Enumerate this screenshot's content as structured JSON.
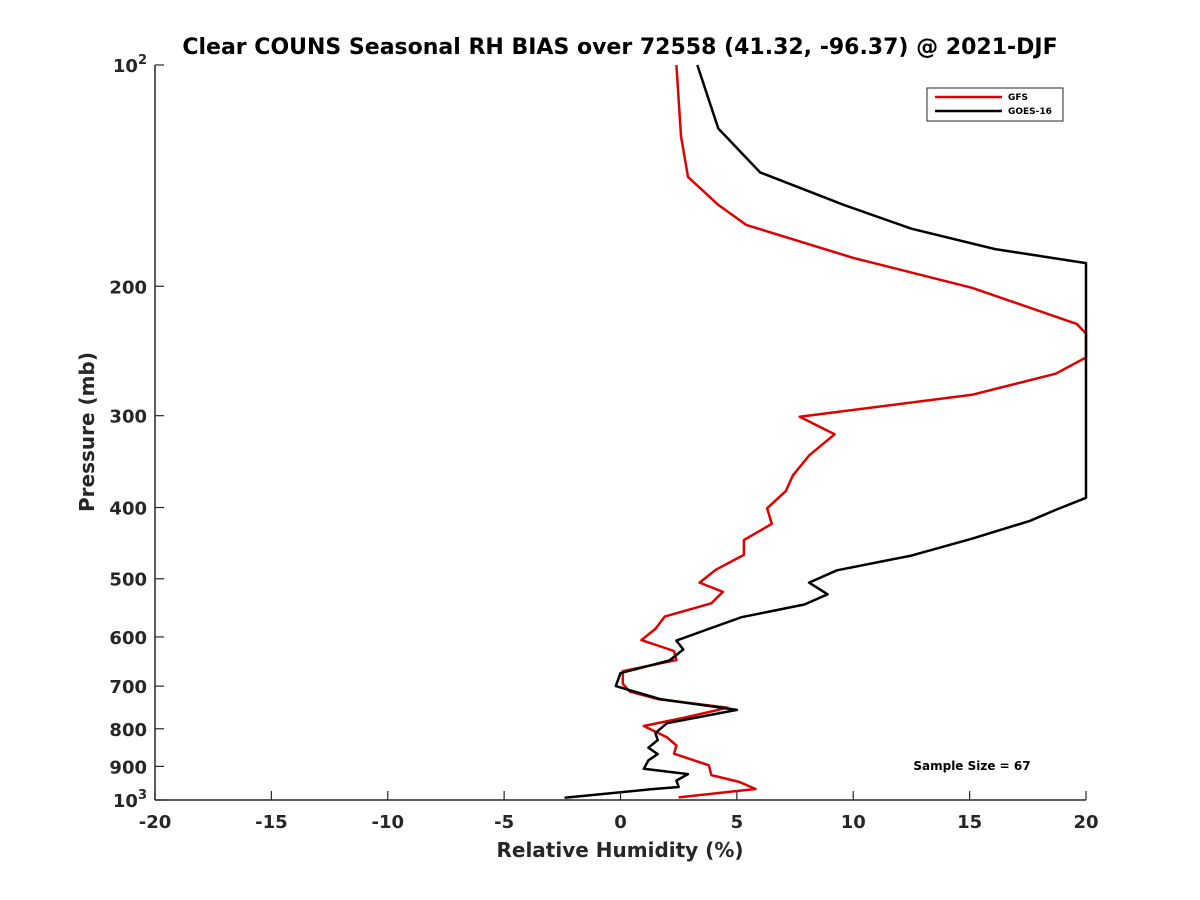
{
  "chart_data": {
    "type": "line",
    "title": "Clear COUNS Seasonal RH BIAS over 72558 (41.32, -96.37) @ 2021-DJF",
    "xlabel": "Relative Humidity (%)",
    "ylabel": "Pressure (mb)",
    "xlim": [
      -20,
      20
    ],
    "ylim": [
      100,
      1000
    ],
    "yscale": "log",
    "y_reversed": true,
    "grid": false,
    "x_ticks": [
      -20,
      -15,
      -10,
      -5,
      0,
      5,
      10,
      15,
      20
    ],
    "x_tick_labels": [
      "-20",
      "-15",
      "-10",
      "-5",
      "0",
      "5",
      "10",
      "15",
      "20"
    ],
    "y_ticks": [
      {
        "value": 100,
        "base": "10",
        "exp": "2"
      },
      {
        "value": 200,
        "label": "200"
      },
      {
        "value": 300,
        "label": "300"
      },
      {
        "value": 400,
        "label": "400"
      },
      {
        "value": 500,
        "label": "500"
      },
      {
        "value": 600,
        "label": "600"
      },
      {
        "value": 700,
        "label": "700"
      },
      {
        "value": 800,
        "label": "800"
      },
      {
        "value": 900,
        "label": "900"
      },
      {
        "value": 1000,
        "base": "10",
        "exp": "3"
      }
    ],
    "legend": {
      "position": "top-right",
      "entries": [
        {
          "name": "GFS",
          "color": "#e00000"
        },
        {
          "name": "GOES-16",
          "color": "#000000"
        }
      ]
    },
    "annotation": "Sample Size = 67",
    "series": [
      {
        "name": "GFS",
        "color": "#e00000",
        "points": [
          [
            2.4,
            100
          ],
          [
            2.6,
            125
          ],
          [
            2.9,
            142
          ],
          [
            4.2,
            155
          ],
          [
            5.4,
            165
          ],
          [
            10.0,
            183
          ],
          [
            15.1,
            201
          ],
          [
            19.6,
            225
          ],
          [
            20.0,
            232
          ],
          [
            20.0,
            244
          ],
          [
            20.0,
            250
          ],
          [
            18.7,
            263
          ],
          [
            15.1,
            281
          ],
          [
            7.7,
            301
          ],
          [
            9.2,
            318
          ],
          [
            8.1,
            340
          ],
          [
            7.4,
            362
          ],
          [
            7.1,
            380
          ],
          [
            6.3,
            401
          ],
          [
            6.5,
            421
          ],
          [
            5.3,
            443
          ],
          [
            5.3,
            464
          ],
          [
            4.1,
            486
          ],
          [
            3.4,
            506
          ],
          [
            4.4,
            521
          ],
          [
            3.9,
            540
          ],
          [
            1.9,
            563
          ],
          [
            1.5,
            585
          ],
          [
            0.9,
            606
          ],
          [
            2.3,
            627
          ],
          [
            2.4,
            645
          ],
          [
            0.1,
            668
          ],
          [
            0.1,
            695
          ],
          [
            0.4,
            712
          ],
          [
            1.6,
            729
          ],
          [
            4.6,
            749
          ],
          [
            2.8,
            772
          ],
          [
            1.0,
            793
          ],
          [
            2.0,
            822
          ],
          [
            2.4,
            843
          ],
          [
            2.3,
            865
          ],
          [
            3.8,
            897
          ],
          [
            3.9,
            925
          ],
          [
            5.1,
            945
          ],
          [
            5.8,
            966
          ],
          [
            2.5,
            992
          ]
        ]
      },
      {
        "name": "GOES-16",
        "color": "#000000",
        "points": [
          [
            3.3,
            100
          ],
          [
            4.2,
            122
          ],
          [
            6.0,
            140
          ],
          [
            9.6,
            155
          ],
          [
            12.5,
            167
          ],
          [
            16.1,
            178
          ],
          [
            20.0,
            186
          ],
          [
            20.0,
            388
          ],
          [
            18.7,
            403
          ],
          [
            17.6,
            417
          ],
          [
            15.1,
            441
          ],
          [
            12.5,
            465
          ],
          [
            9.3,
            487
          ],
          [
            8.1,
            506
          ],
          [
            8.9,
            525
          ],
          [
            7.9,
            542
          ],
          [
            5.2,
            564
          ],
          [
            3.6,
            588
          ],
          [
            2.4,
            607
          ],
          [
            2.7,
            624
          ],
          [
            2.1,
            646
          ],
          [
            0.0,
            672
          ],
          [
            -0.2,
            700
          ],
          [
            1.7,
            729
          ],
          [
            5.0,
            754
          ],
          [
            2.0,
            786
          ],
          [
            1.5,
            811
          ],
          [
            1.6,
            829
          ],
          [
            1.2,
            849
          ],
          [
            1.6,
            866
          ],
          [
            1.2,
            883
          ],
          [
            1.0,
            907
          ],
          [
            2.9,
            922
          ],
          [
            2.4,
            941
          ],
          [
            2.5,
            960
          ],
          [
            1.3,
            967
          ],
          [
            -2.4,
            993
          ]
        ]
      }
    ]
  }
}
